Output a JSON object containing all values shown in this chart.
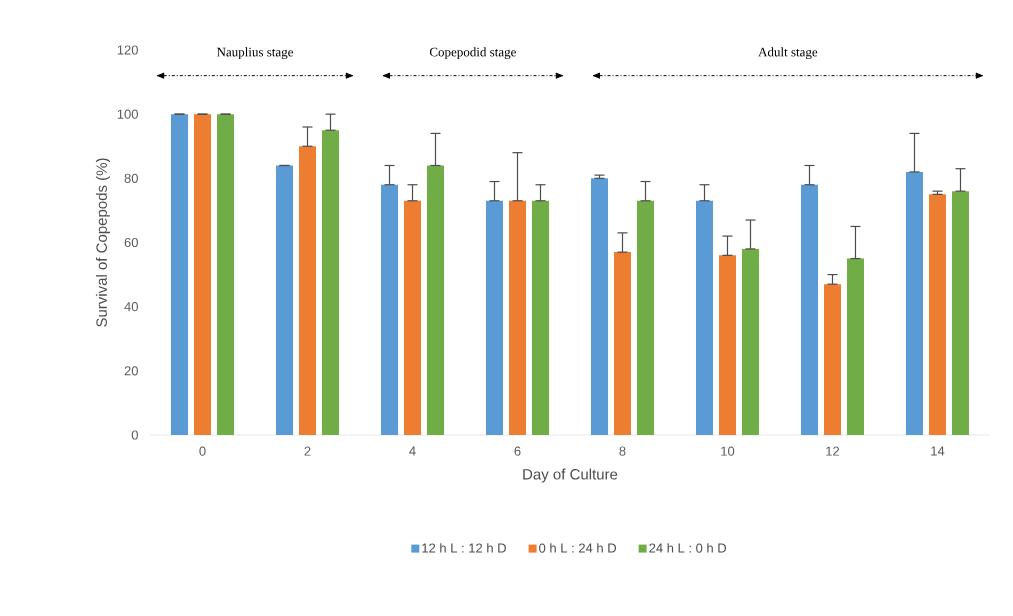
{
  "chart_data": {
    "type": "bar",
    "xlabel": "Day of Culture",
    "ylabel": "Survival of Copepods (%)",
    "categories": [
      "0",
      "2",
      "4",
      "6",
      "8",
      "10",
      "12",
      "14"
    ],
    "series": [
      {
        "name": "12 h L : 12 h D",
        "color": "#5b9bd5",
        "values": [
          100,
          84,
          78,
          73,
          80,
          73,
          78,
          82
        ],
        "errors": [
          [
            100,
            100
          ],
          [
            84,
            84
          ],
          [
            78,
            84
          ],
          [
            73,
            79
          ],
          [
            80,
            81
          ],
          [
            73,
            78
          ],
          [
            78,
            84
          ],
          [
            82,
            94
          ]
        ]
      },
      {
        "name": "0 h L : 24 h D",
        "color": "#ed7d31",
        "values": [
          100,
          90,
          73,
          73,
          57,
          56,
          47,
          75
        ],
        "errors": [
          [
            100,
            100
          ],
          [
            90,
            96
          ],
          [
            73,
            78
          ],
          [
            73,
            88
          ],
          [
            57,
            63
          ],
          [
            56,
            62
          ],
          [
            47,
            50
          ],
          [
            75,
            76
          ]
        ]
      },
      {
        "name": "24 h L : 0 h D",
        "color": "#70ad47",
        "values": [
          100,
          95,
          84,
          73,
          73,
          58,
          55,
          76
        ],
        "errors": [
          [
            100,
            100
          ],
          [
            95,
            100
          ],
          [
            84,
            94
          ],
          [
            73,
            78
          ],
          [
            73,
            79
          ],
          [
            58,
            67
          ],
          [
            55,
            65
          ],
          [
            76,
            83
          ]
        ]
      }
    ],
    "ylim": [
      0,
      120
    ],
    "yticks": [
      0,
      20,
      40,
      60,
      80,
      100,
      120
    ],
    "annotations": [
      "Nauplius stage",
      "Copepodid stage",
      "Adult stage"
    ],
    "legend": "bottom"
  }
}
